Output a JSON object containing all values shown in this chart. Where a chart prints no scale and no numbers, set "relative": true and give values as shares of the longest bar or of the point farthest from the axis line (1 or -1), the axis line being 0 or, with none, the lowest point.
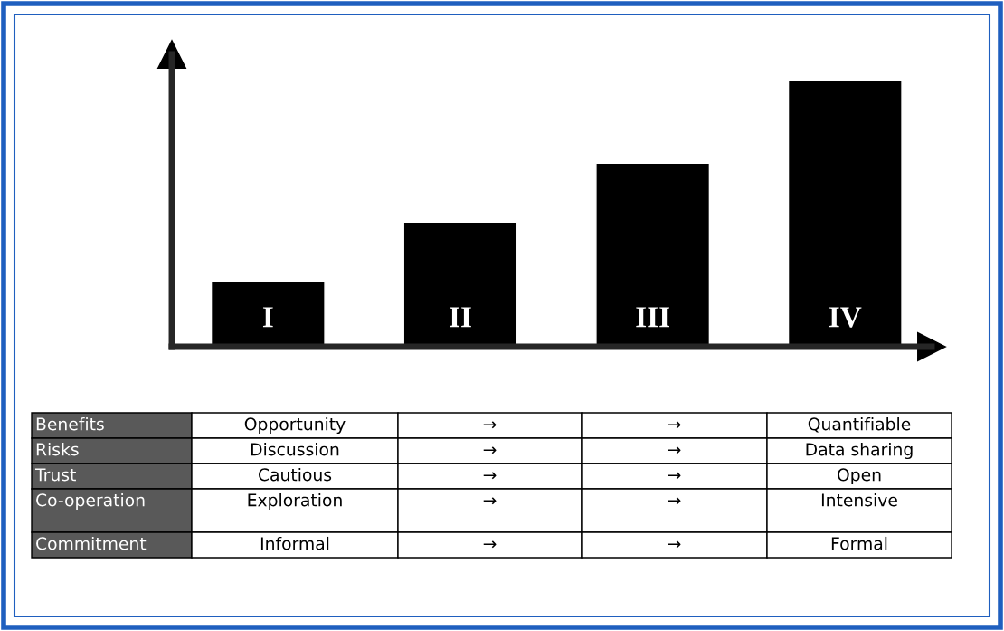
{
  "chart_data": {
    "type": "bar",
    "relative": true,
    "categories": [
      "I",
      "II",
      "III",
      "IV"
    ],
    "values": [
      0.244,
      0.469,
      0.69,
      1
    ],
    "color": "#000000",
    "annotations": [
      "Benefits",
      "Opportunity",
      "→",
      "→",
      "Quantifiable",
      "Risks",
      "Discussion",
      "→",
      "→",
      "Data sharing",
      "Trust",
      "Cautious",
      "→",
      "→",
      "Open",
      "Co-operation",
      "Exploration",
      "→",
      "→",
      "Intensive",
      "Commitment",
      "Informal",
      "→",
      "→",
      "Formal"
    ]
  }
}
